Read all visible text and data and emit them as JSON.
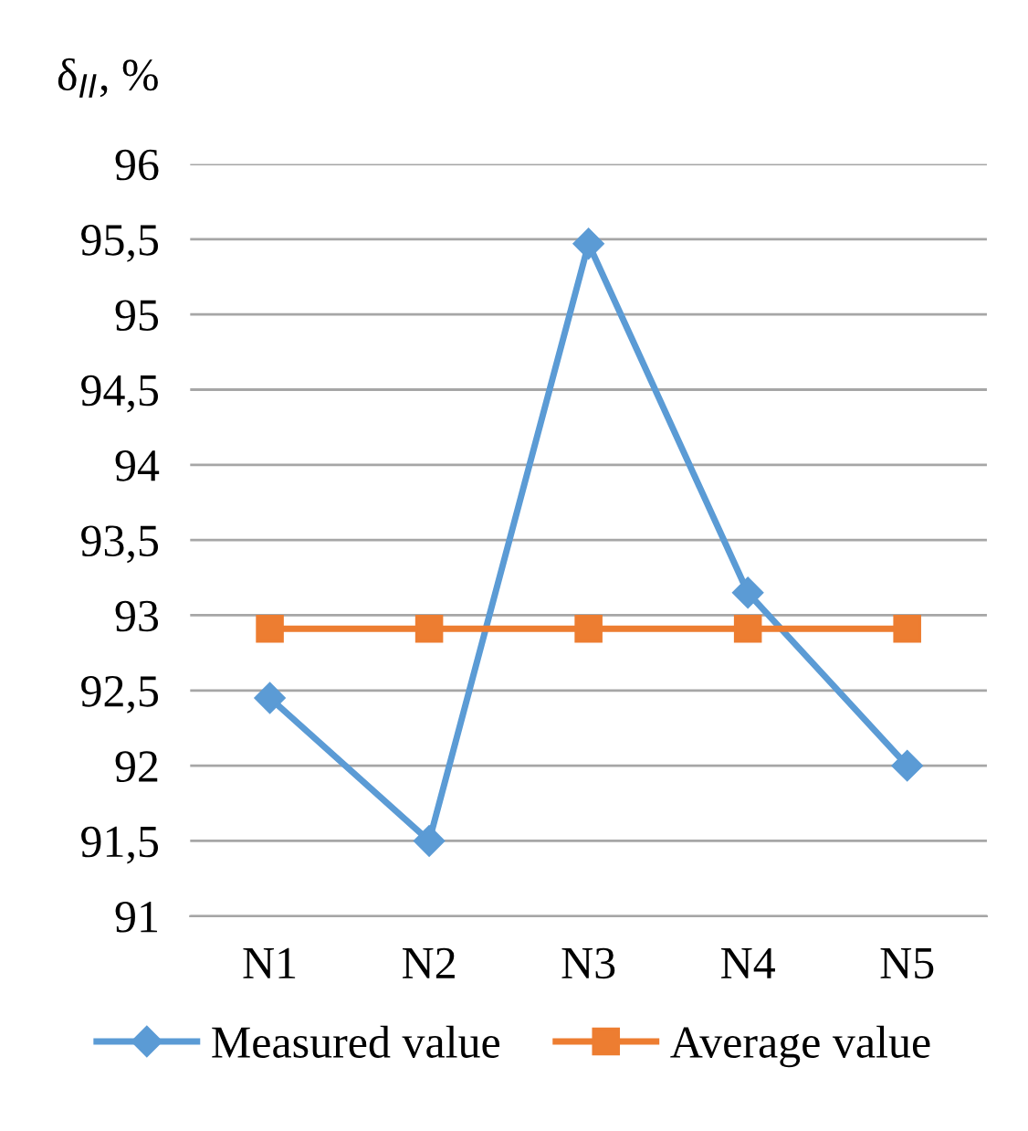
{
  "chart_data": {
    "type": "line",
    "ylabel": "δ$_{II}$, %",
    "categories": [
      "N1",
      "N2",
      "N3",
      "N4",
      "N5"
    ],
    "series": [
      {
        "name": "Measured value",
        "color": "#5b9bd5",
        "marker": "diamond",
        "values": [
          92.45,
          91.5,
          95.47,
          93.15,
          92.0
        ]
      },
      {
        "name": "Average value",
        "color": "#ed7d31",
        "marker": "square",
        "values": [
          92.91,
          92.91,
          92.91,
          92.91,
          92.91
        ]
      }
    ],
    "ylim": [
      91,
      96
    ],
    "yticks": [
      {
        "value": 91,
        "label": "91"
      },
      {
        "value": 91.5,
        "label": "91,5"
      },
      {
        "value": 92,
        "label": "92"
      },
      {
        "value": 92.5,
        "label": "92,5"
      },
      {
        "value": 93,
        "label": "93"
      },
      {
        "value": 93.5,
        "label": "93,5"
      },
      {
        "value": 94,
        "label": "94"
      },
      {
        "value": 94.5,
        "label": "94,5"
      },
      {
        "value": 95,
        "label": "95"
      },
      {
        "value": 95.5,
        "label": "95,5"
      },
      {
        "value": 96,
        "label": "96"
      }
    ],
    "grid": "y",
    "legend": "bottom"
  }
}
